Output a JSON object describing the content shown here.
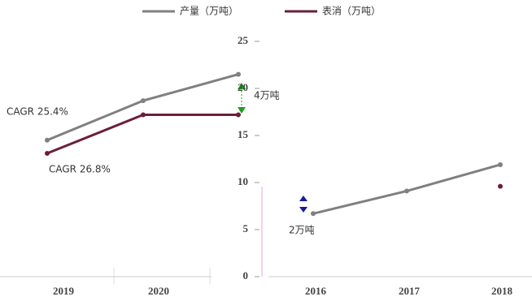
{
  "chart_data": [
    {
      "type": "line",
      "categories": [
        "2019",
        "2020",
        null
      ],
      "series": [
        {
          "name": "产量（万吨）",
          "color": "#808080",
          "values": [
            14.5,
            18.7,
            21.5
          ]
        },
        {
          "name": "表消（万吨）",
          "color": "#6b1f3a",
          "values": [
            13.1,
            17.2,
            17.2
          ]
        }
      ],
      "ylim": [
        0,
        25
      ],
      "annotations": [
        "4万吨",
        "CAGR 25.4%",
        "CAGR 26.8%"
      ]
    },
    {
      "type": "line",
      "categories": [
        "2016",
        "2017",
        "2018"
      ],
      "series": [
        {
          "color": "#808080",
          "values": [
            6.7,
            9.1,
            11.9
          ]
        },
        {
          "color": "#6b1f3a",
          "values": [
            null,
            null,
            9.6
          ]
        }
      ],
      "ylim": [
        0,
        25
      ],
      "yticks": [
        0,
        5,
        10,
        15,
        20,
        25
      ],
      "annotations": [
        "2万吨"
      ]
    }
  ]
}
